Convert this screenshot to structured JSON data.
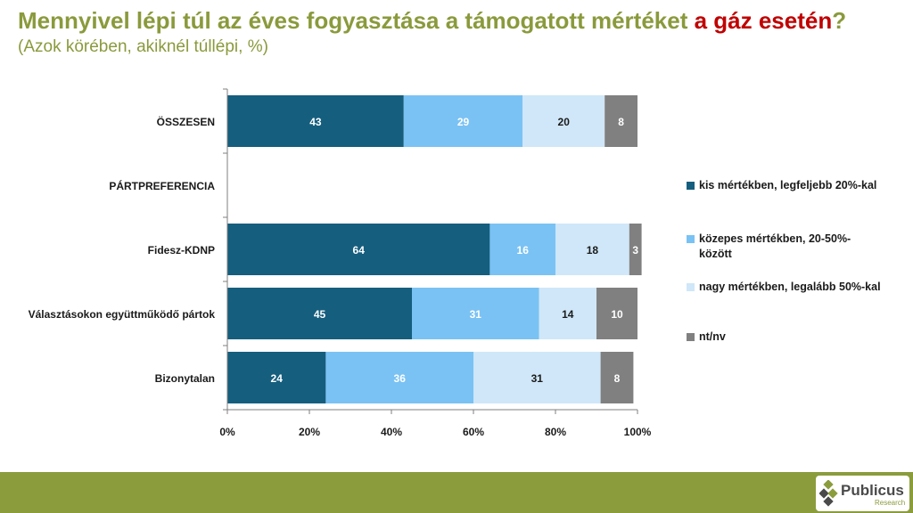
{
  "title": {
    "part1": "Mennyivel lépi túl az éves fogyasztása a támogatott mértéket ",
    "highlight": "a gáz esetén",
    "part2": "?"
  },
  "subtitle": "(Azok körében, akiknél túllépi, %)",
  "colors": {
    "title": "#8a9a3c",
    "highlight": "#c00000",
    "footer": "#8b9c3d",
    "series": [
      "#155e7e",
      "#7ac2f4",
      "#cfe7f8",
      "#808080"
    ]
  },
  "chart_data": {
    "type": "bar",
    "orientation": "horizontal",
    "stacked": true,
    "categories": [
      "ÖSSZESEN",
      "PÁRTPREFERENCIA",
      "Fidesz-KDNP",
      "Választásokon együttműködő pártok",
      "Bizonytalan"
    ],
    "series": [
      {
        "name": "kis mértékben, legfeljebb 20%-kal",
        "values": [
          43,
          null,
          64,
          45,
          24
        ]
      },
      {
        "name": "közepes mértékben, 20-50%-között",
        "values": [
          29,
          null,
          16,
          31,
          36
        ]
      },
      {
        "name": "nagy mértékben, legalább 50%-kal",
        "values": [
          20,
          null,
          18,
          14,
          31
        ]
      },
      {
        "name": "nt/nv",
        "values": [
          8,
          null,
          3,
          10,
          8
        ]
      }
    ],
    "xlim": [
      0,
      100
    ],
    "xticks": [
      "0%",
      "20%",
      "40%",
      "60%",
      "80%",
      "100%"
    ],
    "legend": "right"
  },
  "logo": {
    "name": "Publicus",
    "sub": "Research"
  }
}
